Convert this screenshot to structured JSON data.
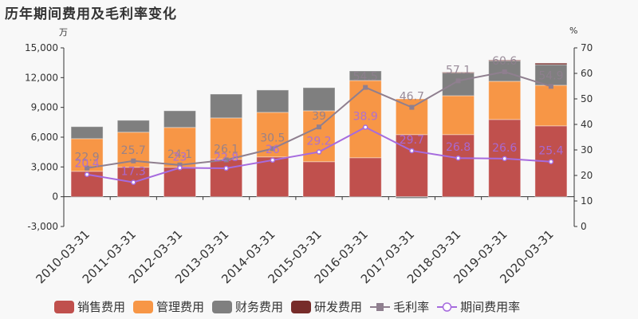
{
  "title": "历年期间费用及毛利率变化",
  "left_unit": "万",
  "right_unit": "%",
  "colors": {
    "sales": "#c0504d",
    "admin": "#f79646",
    "finance": "#7f7f7f",
    "rd": "#772c2a",
    "gross": "#8f7f8f",
    "period": "#a66bde"
  },
  "legend": [
    {
      "key": "sales",
      "label": "销售费用",
      "type": "bar"
    },
    {
      "key": "admin",
      "label": "管理费用",
      "type": "bar"
    },
    {
      "key": "finance",
      "label": "财务费用",
      "type": "bar"
    },
    {
      "key": "rd",
      "label": "研发费用",
      "type": "bar"
    },
    {
      "key": "gross",
      "label": "毛利率",
      "type": "line-square"
    },
    {
      "key": "period",
      "label": "期间费用率",
      "type": "line-circle"
    }
  ],
  "chart_data": {
    "type": "bar",
    "title": "历年期间费用及毛利率变化",
    "xlabel": "",
    "ylabel": "万",
    "y2label": "%",
    "ylim": [
      -3000,
      15000
    ],
    "yticks": [
      -3000,
      0,
      3000,
      6000,
      9000,
      12000,
      15000
    ],
    "ytick_labels": [
      "-3,000",
      "0",
      "3,000",
      "6,000",
      "9,000",
      "12,000",
      "15,000"
    ],
    "y2lim": [
      0,
      70
    ],
    "y2ticks": [
      0,
      10,
      20,
      30,
      40,
      50,
      60,
      70
    ],
    "categories": [
      "2010-03-31",
      "2011-03-31",
      "2012-03-31",
      "2013-03-31",
      "2014-03-31",
      "2015-03-31",
      "2016-03-31",
      "2017-03-31",
      "2018-03-31",
      "2019-03-31",
      "2020-03-31"
    ],
    "series": [
      {
        "name": "销售费用",
        "key": "sales",
        "kind": "stacked-bar",
        "axis": "left",
        "values": [
          2560,
          2970,
          2970,
          3770,
          4010,
          3530,
          3930,
          6260,
          6260,
          7780,
          7140
        ]
      },
      {
        "name": "管理费用",
        "key": "admin",
        "kind": "stacked-bar",
        "axis": "left",
        "values": [
          3290,
          3530,
          4010,
          4170,
          4490,
          5130,
          7780,
          3600,
          3920,
          3850,
          4090
        ]
      },
      {
        "name": "财务费用",
        "key": "finance",
        "kind": "stacked-bar",
        "axis": "left",
        "values": [
          1210,
          1200,
          1680,
          2400,
          2250,
          2330,
          960,
          -160,
          2330,
          2080,
          2080
        ]
      },
      {
        "name": "研发费用",
        "key": "rd",
        "kind": "stacked-bar",
        "axis": "left",
        "values": [
          0,
          0,
          0,
          0,
          0,
          0,
          0,
          0,
          30,
          60,
          150
        ]
      },
      {
        "name": "毛利率",
        "key": "gross",
        "kind": "line",
        "axis": "right",
        "values": [
          22.9,
          25.7,
          24.1,
          26.1,
          30.5,
          39,
          54.5,
          46.7,
          57.1,
          60.6,
          54.9
        ]
      },
      {
        "name": "期间费用率",
        "key": "period",
        "kind": "line",
        "axis": "right",
        "values": [
          20.4,
          17.3,
          23,
          22.8,
          26,
          29.2,
          38.9,
          29.7,
          26.8,
          26.6,
          25.4
        ]
      }
    ],
    "legend_position": "bottom",
    "grid": false
  }
}
